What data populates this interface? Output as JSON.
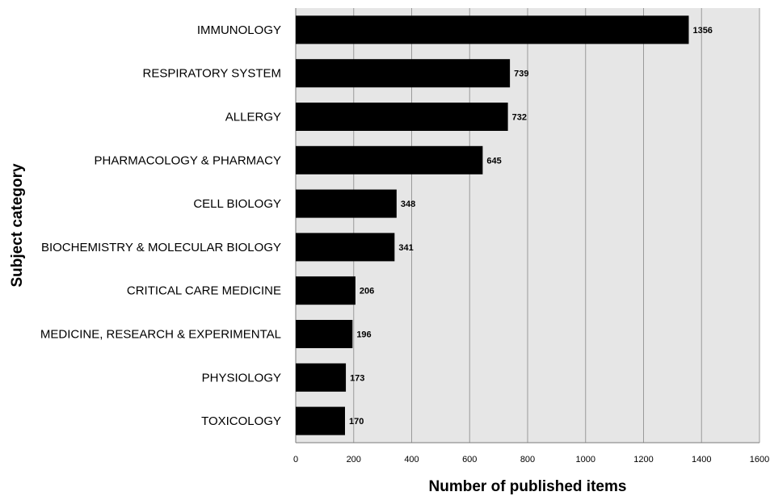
{
  "chart_data": {
    "type": "bar",
    "orientation": "horizontal",
    "title": "",
    "xlabel": "Number of published items",
    "ylabel": "Subject category",
    "xlim": [
      0,
      1600
    ],
    "xticks": [
      0,
      200,
      400,
      600,
      800,
      1000,
      1200,
      1400,
      1600
    ],
    "grid": true,
    "colors": {
      "bar": "#000000",
      "plot_background": "#e6e6e6",
      "gridline": "#9a9a9a"
    },
    "categories": [
      "IMMUNOLOGY",
      "RESPIRATORY SYSTEM",
      "ALLERGY",
      "PHARMACOLOGY & PHARMACY",
      "CELL BIOLOGY",
      "BIOCHEMISTRY & MOLECULAR BIOLOGY",
      "CRITICAL CARE MEDICINE",
      "MEDICINE, RESEARCH & EXPERIMENTAL",
      "PHYSIOLOGY",
      "TOXICOLOGY"
    ],
    "values": [
      1356,
      739,
      732,
      645,
      348,
      341,
      206,
      196,
      173,
      170
    ]
  }
}
